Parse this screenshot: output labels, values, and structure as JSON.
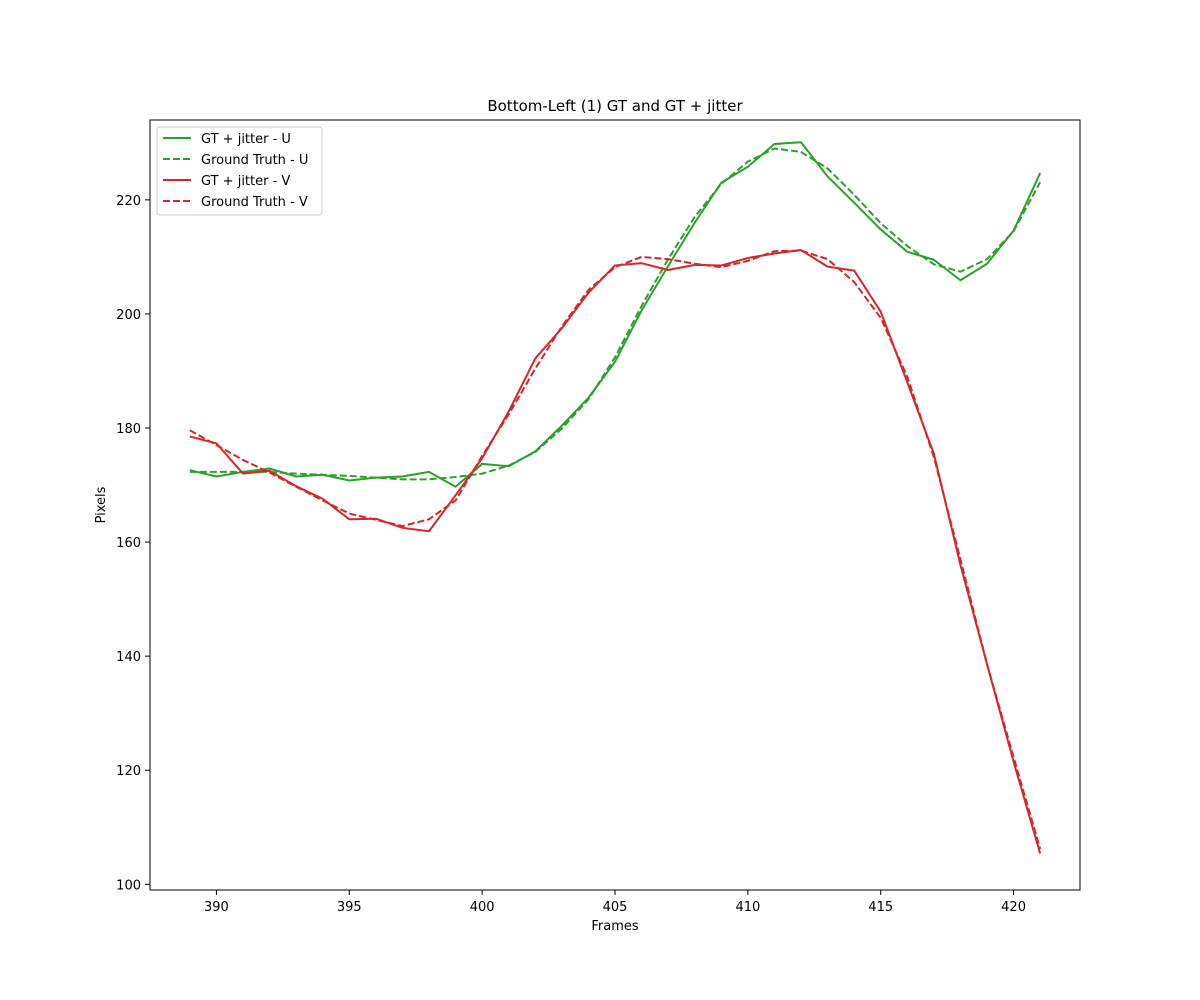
{
  "chart_data": {
    "type": "line",
    "title": "Bottom-Left (1) GT and GT + jitter",
    "xlabel": "Frames",
    "ylabel": "Pixels",
    "xlim": [
      387.5,
      422.5
    ],
    "ylim": [
      99,
      234
    ],
    "xticks": [
      390,
      395,
      400,
      405,
      410,
      415,
      420
    ],
    "yticks": [
      100,
      120,
      140,
      160,
      180,
      200,
      220
    ],
    "grid": false,
    "legend_position": "top-left",
    "x": [
      389,
      390,
      391,
      392,
      393,
      394,
      395,
      396,
      397,
      398,
      399,
      400,
      401,
      402,
      403,
      404,
      405,
      406,
      407,
      408,
      409,
      410,
      411,
      412,
      413,
      414,
      415,
      416,
      417,
      418,
      419,
      420,
      421
    ],
    "series": [
      {
        "name": "GT + jitter - U",
        "color": "#2ca02c",
        "style": "solid",
        "values": [
          172.6,
          171.5,
          172.3,
          172.9,
          171.5,
          171.8,
          170.8,
          171.3,
          171.5,
          172.3,
          169.7,
          173.7,
          173.3,
          175.9,
          180.4,
          185.3,
          191.6,
          200.6,
          208.4,
          216.0,
          223.0,
          225.8,
          229.8,
          230.1,
          224.1,
          219.5,
          214.8,
          210.9,
          209.5,
          205.9,
          208.8,
          214.6,
          224.7
        ]
      },
      {
        "name": "Ground Truth - U",
        "color": "#2ca02c",
        "style": "dashed",
        "values": [
          172.3,
          172.3,
          172.3,
          172.3,
          172.0,
          171.8,
          171.6,
          171.3,
          171.0,
          171.0,
          171.4,
          172.0,
          173.4,
          175.8,
          179.9,
          185.0,
          192.4,
          201.4,
          209.6,
          217.0,
          222.8,
          226.7,
          229.0,
          228.4,
          225.5,
          220.9,
          215.9,
          211.9,
          208.7,
          207.4,
          209.6,
          214.5,
          223.1
        ]
      },
      {
        "name": "GT + jitter - V",
        "color": "#d62728",
        "style": "solid",
        "values": [
          178.5,
          177.3,
          172.0,
          172.5,
          169.8,
          167.6,
          164.0,
          164.1,
          162.5,
          161.9,
          168.2,
          174.7,
          182.9,
          192.2,
          197.5,
          203.7,
          208.5,
          208.9,
          207.7,
          208.6,
          208.5,
          209.8,
          210.6,
          211.2,
          208.3,
          207.6,
          200.4,
          188.0,
          175.5,
          156.0,
          138.6,
          121.5,
          105.4
        ]
      },
      {
        "name": "Ground Truth - V",
        "color": "#d62728",
        "style": "dashed",
        "values": [
          179.6,
          177.0,
          174.4,
          172.2,
          169.7,
          167.3,
          165.0,
          163.9,
          162.8,
          164.0,
          167.3,
          175.1,
          182.4,
          190.4,
          197.8,
          204.2,
          208.2,
          210.0,
          209.6,
          208.8,
          208.2,
          209.3,
          211.0,
          211.1,
          209.6,
          205.6,
          199.3,
          189.0,
          174.9,
          157.0,
          138.6,
          122.3,
          106.2
        ]
      }
    ]
  }
}
